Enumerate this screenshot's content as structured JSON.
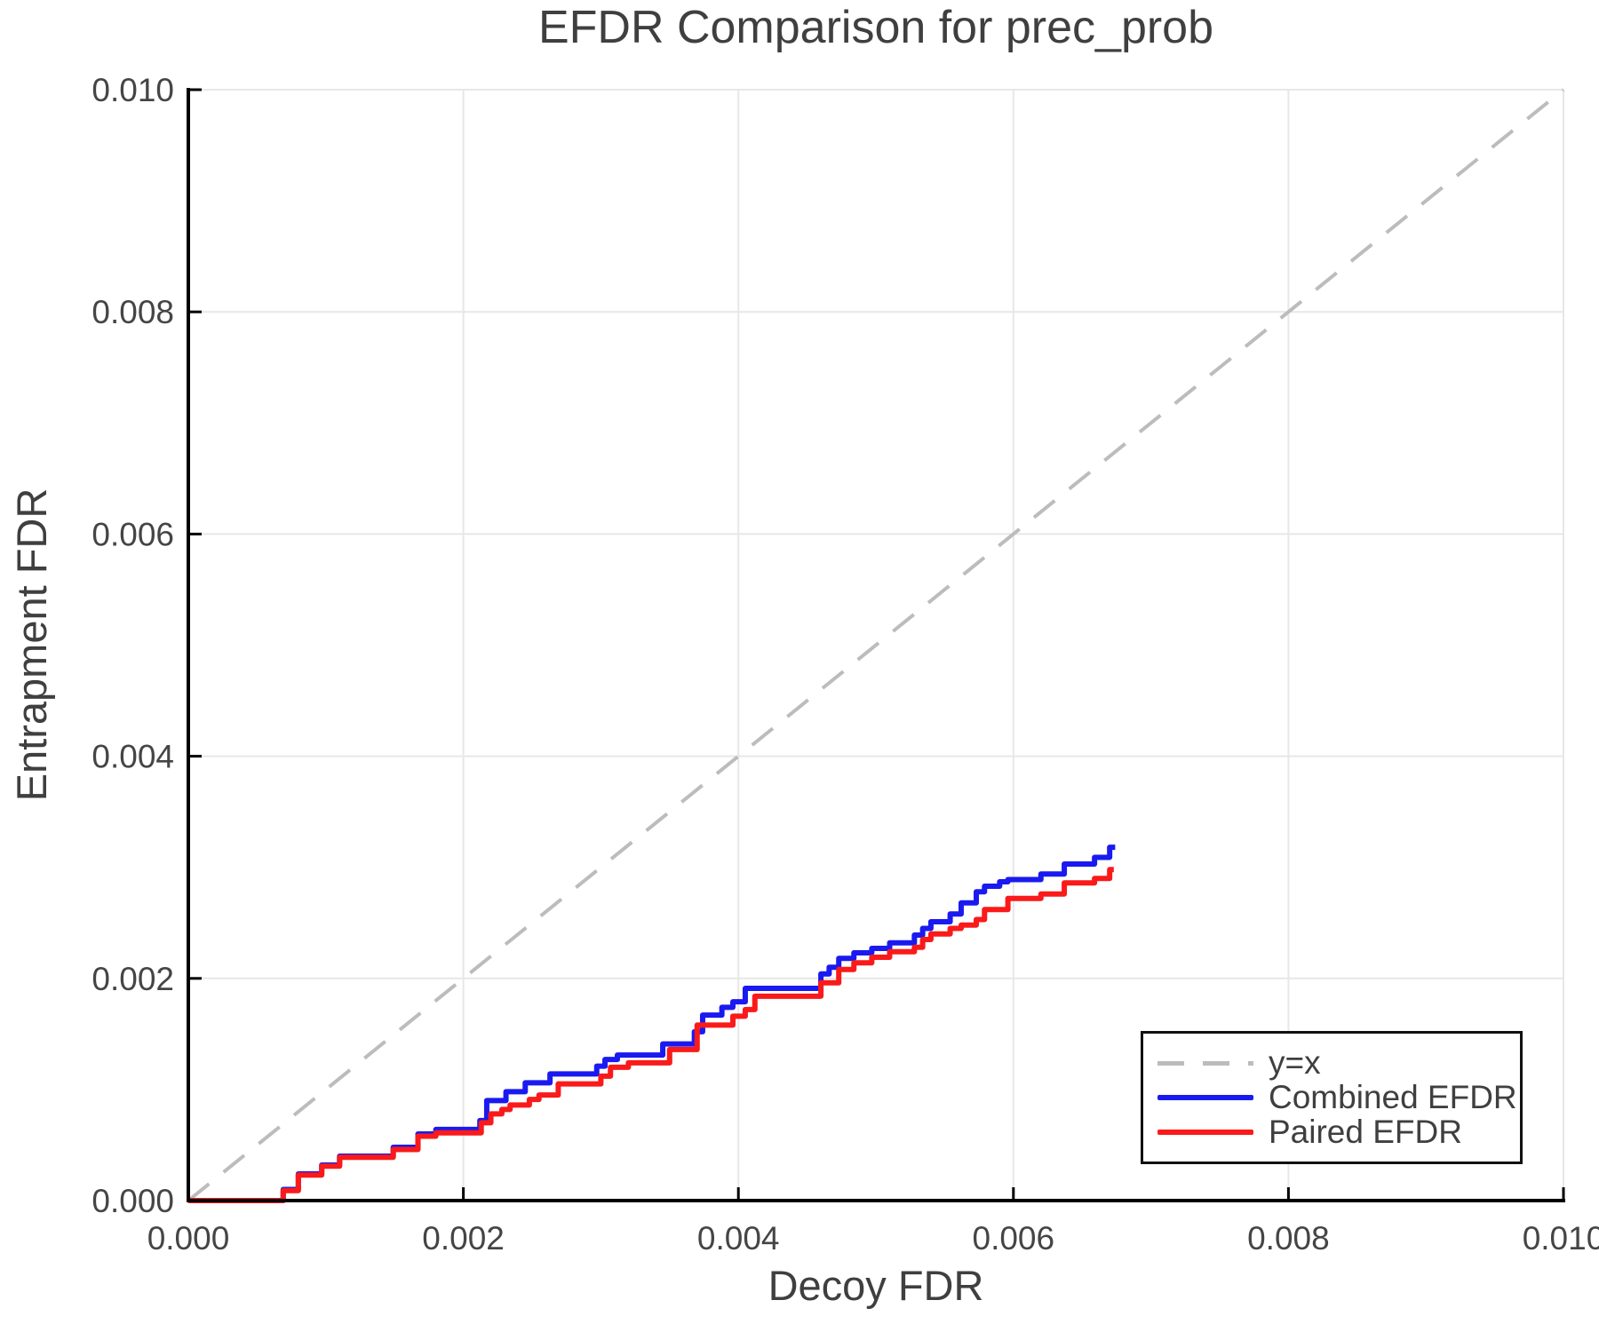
{
  "title": "EFDR Comparison for prec_prob",
  "colors": {
    "combined_efdr": "#1a1af0",
    "paired_efdr": "#fa1a1a",
    "identity_line": "#bcbcbc",
    "grid": "#e7e7e7",
    "axis": "#000000",
    "text": "#3f3f3f"
  },
  "chart_data": {
    "type": "line",
    "title": "EFDR Comparison for prec_prob",
    "xlabel": "Decoy FDR",
    "ylabel": "Entrapment FDR",
    "xlim": [
      0,
      0.01
    ],
    "ylim": [
      0,
      0.01
    ],
    "grid": true,
    "legend_position": "lower right",
    "x_tick_values": [
      0,
      0.002,
      0.004,
      0.006,
      0.008,
      0.01
    ],
    "x_tick_labels": [
      "0.000",
      "0.002",
      "0.004",
      "0.006",
      "0.008",
      "0.010"
    ],
    "y_tick_values": [
      0,
      0.002,
      0.004,
      0.006,
      0.008,
      0.01
    ],
    "y_tick_labels": [
      "0.000",
      "0.002",
      "0.004",
      "0.006",
      "0.008",
      "0.010"
    ],
    "series": [
      {
        "name": "y=x",
        "style": "dashed",
        "color": "#bcbcbc",
        "points": [
          [
            0,
            0
          ],
          [
            0.01,
            0.01
          ]
        ]
      },
      {
        "name": "Combined EFDR",
        "style": "step",
        "color": "#1a1af0",
        "points": [
          [
            0,
            0
          ],
          [
            0.00069,
            0.0001
          ],
          [
            0.0008,
            0.00024
          ],
          [
            0.00097,
            0.00032
          ],
          [
            0.0011,
            0.0004
          ],
          [
            0.00149,
            0.00048
          ],
          [
            0.00167,
            0.0006
          ],
          [
            0.0018,
            0.00064
          ],
          [
            0.00212,
            0.00072
          ],
          [
            0.00217,
            0.0009
          ],
          [
            0.00231,
            0.00098
          ],
          [
            0.00245,
            0.00106
          ],
          [
            0.00263,
            0.00114
          ],
          [
            0.00297,
            0.00121
          ],
          [
            0.00303,
            0.00127
          ],
          [
            0.00312,
            0.00131
          ],
          [
            0.00345,
            0.00141
          ],
          [
            0.00368,
            0.00152
          ],
          [
            0.00374,
            0.00167
          ],
          [
            0.00388,
            0.00174
          ],
          [
            0.00396,
            0.00179
          ],
          [
            0.00405,
            0.00191
          ],
          [
            0.0046,
            0.00204
          ],
          [
            0.00466,
            0.0021
          ],
          [
            0.00473,
            0.00218
          ],
          [
            0.00484,
            0.00223
          ],
          [
            0.00497,
            0.00227
          ],
          [
            0.0051,
            0.00232
          ],
          [
            0.00528,
            0.00239
          ],
          [
            0.00534,
            0.00245
          ],
          [
            0.0054,
            0.00251
          ],
          [
            0.00554,
            0.00258
          ],
          [
            0.00562,
            0.00268
          ],
          [
            0.00573,
            0.00278
          ],
          [
            0.00579,
            0.00283
          ],
          [
            0.0059,
            0.00287
          ],
          [
            0.00596,
            0.00289
          ],
          [
            0.0062,
            0.00294
          ],
          [
            0.00637,
            0.00303
          ],
          [
            0.00659,
            0.00309
          ],
          [
            0.0067,
            0.00318
          ],
          [
            0.00674,
            0.00318
          ]
        ]
      },
      {
        "name": "Paired EFDR",
        "style": "step",
        "color": "#fa1a1a",
        "points": [
          [
            0,
            0
          ],
          [
            0.00069,
            9e-05
          ],
          [
            0.0008,
            0.00023
          ],
          [
            0.00097,
            0.00031
          ],
          [
            0.0011,
            0.00039
          ],
          [
            0.00149,
            0.00046
          ],
          [
            0.00167,
            0.00058
          ],
          [
            0.0018,
            0.00061
          ],
          [
            0.00213,
            0.0007
          ],
          [
            0.0022,
            0.00078
          ],
          [
            0.00228,
            0.00082
          ],
          [
            0.00234,
            0.00086
          ],
          [
            0.00248,
            0.00091
          ],
          [
            0.00255,
            0.00095
          ],
          [
            0.00269,
            0.00105
          ],
          [
            0.003,
            0.00112
          ],
          [
            0.00307,
            0.0012
          ],
          [
            0.0032,
            0.00124
          ],
          [
            0.0035,
            0.00136
          ],
          [
            0.0037,
            0.00158
          ],
          [
            0.00396,
            0.00166
          ],
          [
            0.00405,
            0.00172
          ],
          [
            0.00412,
            0.00184
          ],
          [
            0.0046,
            0.00196
          ],
          [
            0.00473,
            0.00208
          ],
          [
            0.00484,
            0.00214
          ],
          [
            0.00497,
            0.00219
          ],
          [
            0.0051,
            0.00224
          ],
          [
            0.00528,
            0.00228
          ],
          [
            0.00534,
            0.00235
          ],
          [
            0.0054,
            0.0024
          ],
          [
            0.00554,
            0.00245
          ],
          [
            0.00562,
            0.00248
          ],
          [
            0.00573,
            0.00253
          ],
          [
            0.00579,
            0.00262
          ],
          [
            0.00596,
            0.00272
          ],
          [
            0.0062,
            0.00276
          ],
          [
            0.00637,
            0.00286
          ],
          [
            0.00659,
            0.0029
          ],
          [
            0.0067,
            0.00298
          ],
          [
            0.00673,
            0.00298
          ]
        ]
      }
    ]
  }
}
